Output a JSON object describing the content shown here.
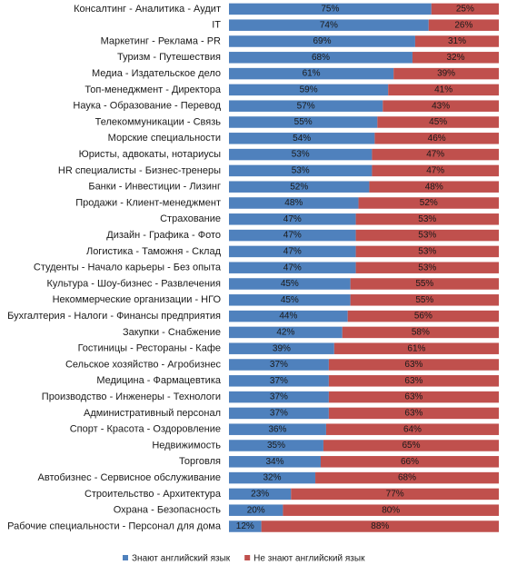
{
  "chart_data": {
    "type": "stacked-bar",
    "orientation": "horizontal",
    "categories": [
      "Консалтинг - Аналитика - Аудит",
      "IT",
      "Маркетинг - Реклама - PR",
      "Туризм - Путешествия",
      "Медиа - Издательское дело",
      "Топ-менеджмент - Директора",
      "Наука - Образование - Перевод",
      "Телекоммуникации - Связь",
      "Морские специальности",
      "Юристы, адвокаты, нотариусы",
      "HR специалисты - Бизнес-тренеры",
      "Банки - Инвестиции - Лизинг",
      "Продажи - Клиент-менеджмент",
      "Страхование",
      "Дизайн - Графика - Фото",
      "Логистика - Таможня - Склад",
      "Студенты - Начало карьеры - Без опыта",
      "Культура - Шоу-бизнес - Развлечения",
      "Некоммерческие организации - НГО",
      "Бухгалтерия - Налоги - Финансы предприятия",
      "Закупки - Снабжение",
      "Гостиницы - Рестораны - Кафе",
      "Сельское хозяйство - Агробизнес",
      "Медицина - Фармацевтика",
      "Производство - Инженеры - Технологи",
      "Административный персонал",
      "Спорт - Красота - Оздоровление",
      "Недвижимость",
      "Торговля",
      "Автобизнес - Сервисное обслуживание",
      "Строительство - Архитектура",
      "Охрана - Безопасность",
      "Рабочие специальности - Персонал для дома"
    ],
    "series": [
      {
        "name": "Знают английский язык",
        "color": "#4f81bd",
        "values": [
          75,
          74,
          69,
          68,
          61,
          59,
          57,
          55,
          54,
          53,
          53,
          52,
          48,
          47,
          47,
          47,
          47,
          45,
          45,
          44,
          42,
          39,
          37,
          37,
          37,
          37,
          36,
          35,
          34,
          32,
          23,
          20,
          12
        ],
        "value_labels": [
          "75%",
          "74%",
          "69%",
          "68%",
          "61%",
          "59%",
          "57%",
          "55%",
          "54%",
          "53%",
          "53%",
          "52%",
          "48%",
          "47%",
          "47%",
          "47%",
          "47%",
          "45%",
          "45%",
          "44%",
          "42%",
          "39%",
          "37%",
          "37%",
          "37%",
          "37%",
          "36%",
          "35%",
          "34%",
          "32%",
          "23%",
          "20%",
          "12%"
        ]
      },
      {
        "name": "Не знают английский язык",
        "color": "#c0504d",
        "values": [
          25,
          26,
          31,
          32,
          39,
          41,
          43,
          45,
          46,
          47,
          47,
          48,
          52,
          53,
          53,
          53,
          53,
          55,
          55,
          56,
          58,
          61,
          63,
          63,
          63,
          63,
          64,
          65,
          66,
          68,
          77,
          80,
          88
        ],
        "value_labels": [
          "25%",
          "26%",
          "31%",
          "32%",
          "39%",
          "41%",
          "43%",
          "45%",
          "46%",
          "47%",
          "47%",
          "48%",
          "52%",
          "53%",
          "53%",
          "53%",
          "53%",
          "55%",
          "55%",
          "56%",
          "58%",
          "61%",
          "63%",
          "63%",
          "63%",
          "63%",
          "64%",
          "65%",
          "66%",
          "68%",
          "77%",
          "80%",
          "88%"
        ]
      }
    ],
    "xlim": [
      0,
      100
    ],
    "legend": "bottom"
  }
}
